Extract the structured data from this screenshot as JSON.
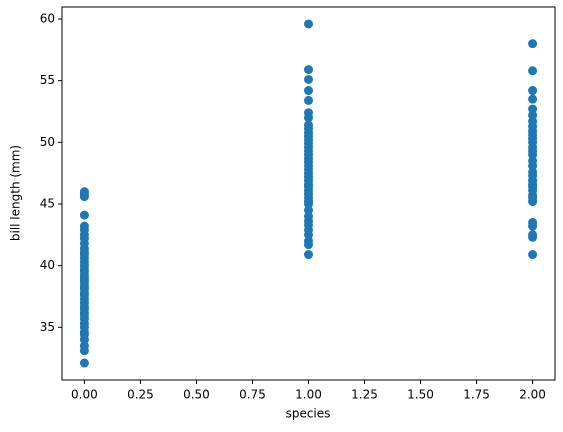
{
  "chart_data": {
    "type": "scatter",
    "x_label": "species",
    "y_label": "bill length (mm)",
    "color": "#1f77b4",
    "x": [
      0,
      0,
      0,
      0,
      0,
      0,
      0,
      0,
      0,
      0,
      0,
      0,
      0,
      0,
      0,
      0,
      0,
      0,
      0,
      0,
      0,
      0,
      0,
      0,
      0,
      0,
      0,
      0,
      0,
      0,
      0,
      0,
      0,
      0,
      0,
      0,
      0,
      0,
      0,
      0,
      1,
      1,
      1,
      1,
      1,
      1,
      1,
      1,
      1,
      1,
      1,
      1,
      1,
      1,
      1,
      1,
      1,
      1,
      1,
      1,
      1,
      1,
      1,
      1,
      1,
      1,
      1,
      1,
      1,
      1,
      1,
      1,
      1,
      1,
      1,
      1,
      1,
      1,
      1,
      2,
      2,
      2,
      2,
      2,
      2,
      2,
      2,
      2,
      2,
      2,
      2,
      2,
      2,
      2,
      2,
      2,
      2,
      2,
      2,
      2,
      2,
      2,
      2,
      2,
      2,
      2,
      2,
      2,
      2,
      2
    ],
    "y": [
      32.1,
      33.1,
      33.5,
      34.0,
      34.4,
      34.6,
      35.0,
      35.3,
      35.7,
      36.0,
      36.2,
      36.5,
      36.7,
      37.0,
      37.3,
      37.6,
      37.8,
      38.1,
      38.3,
      38.6,
      38.8,
      39.0,
      39.2,
      39.5,
      39.7,
      40.0,
      40.3,
      40.6,
      40.9,
      41.1,
      41.4,
      41.8,
      42.2,
      42.5,
      42.9,
      43.2,
      44.1,
      45.6,
      45.8,
      46.0,
      40.9,
      41.7,
      42.0,
      42.5,
      42.9,
      43.3,
      43.6,
      44.0,
      44.5,
      45.0,
      45.2,
      45.5,
      45.8,
      46.1,
      46.4,
      46.6,
      46.9,
      47.2,
      47.5,
      47.8,
      48.1,
      48.4,
      48.7,
      49.0,
      49.3,
      49.6,
      49.9,
      50.2,
      50.5,
      50.8,
      51.1,
      51.4,
      52.0,
      52.4,
      53.4,
      54.2,
      55.1,
      55.9,
      59.6,
      40.9,
      42.3,
      42.5,
      43.2,
      43.5,
      45.2,
      45.5,
      45.7,
      46.1,
      46.4,
      46.6,
      46.9,
      47.3,
      47.6,
      48.1,
      48.5,
      49.0,
      49.3,
      49.6,
      50.0,
      50.3,
      50.6,
      50.9,
      51.3,
      51.7,
      52.2,
      52.7,
      53.5,
      54.2,
      55.8,
      58.0
    ],
    "xlim": [
      -0.1,
      2.1
    ],
    "xticks": [
      {
        "value": 0,
        "label": "0.00"
      },
      {
        "value": 0.25,
        "label": "0.25"
      },
      {
        "value": 0.5,
        "label": "0.50"
      },
      {
        "value": 0.75,
        "label": "0.75"
      },
      {
        "value": 1,
        "label": "1.00"
      },
      {
        "value": 1.25,
        "label": "1.25"
      },
      {
        "value": 1.5,
        "label": "1.50"
      },
      {
        "value": 1.75,
        "label": "1.75"
      },
      {
        "value": 2,
        "label": "2.00"
      }
    ],
    "ylim": [
      30.725,
      60.975
    ],
    "yticks": [
      35,
      40,
      45,
      50,
      55,
      60
    ]
  }
}
